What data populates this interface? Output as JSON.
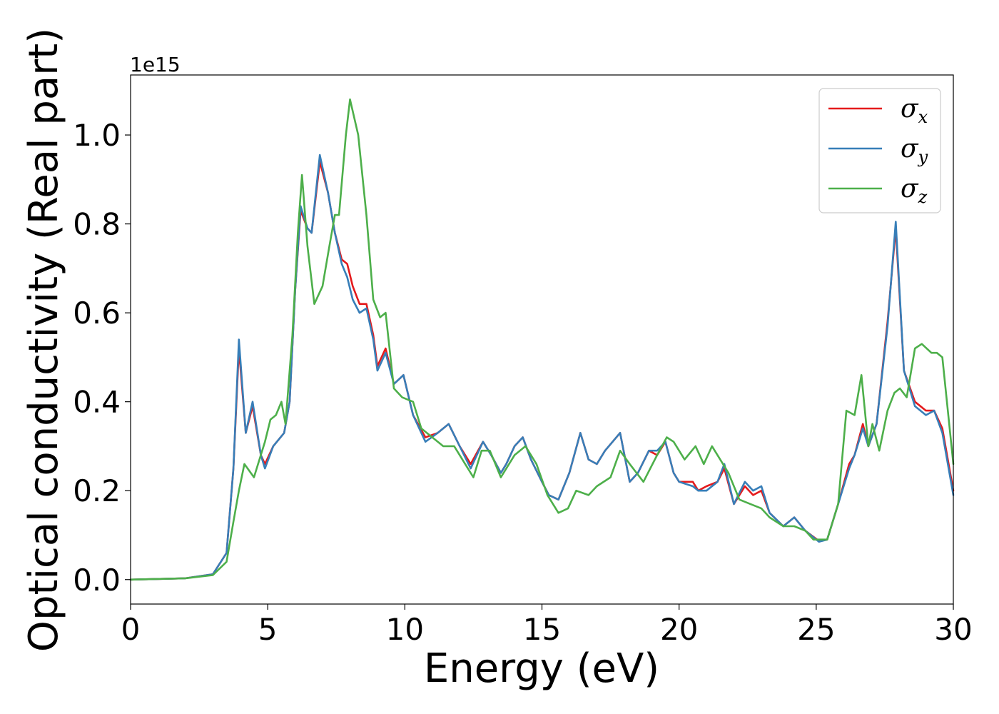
{
  "chart_data": {
    "type": "line",
    "title": "",
    "xlabel": "Energy (eV)",
    "ylabel": "Optical conductivity (Real part)",
    "y_offset_label": "1e15",
    "xlim": [
      0,
      30
    ],
    "ylim": [
      -0.055,
      1.135
    ],
    "x_ticks": [
      0,
      5,
      10,
      15,
      20,
      25,
      30
    ],
    "x_tick_labels": [
      "0",
      "5",
      "10",
      "15",
      "20",
      "25",
      "30"
    ],
    "y_ticks": [
      0.0,
      0.2,
      0.4,
      0.6,
      0.8,
      1.0
    ],
    "y_tick_labels": [
      "0.0",
      "0.2",
      "0.4",
      "0.6",
      "0.8",
      "1.0"
    ],
    "grid": false,
    "legend_position": "top-right",
    "series": [
      {
        "name": "σx",
        "symbol": "σ",
        "subscript": "x",
        "color": "#e41a1c",
        "points": [
          [
            0,
            0
          ],
          [
            2,
            0.003
          ],
          [
            3,
            0.012
          ],
          [
            3.5,
            0.06
          ],
          [
            3.75,
            0.25
          ],
          [
            3.95,
            0.52
          ],
          [
            4.2,
            0.33
          ],
          [
            4.45,
            0.39
          ],
          [
            4.75,
            0.28
          ],
          [
            4.9,
            0.26
          ],
          [
            5.2,
            0.3
          ],
          [
            5.6,
            0.33
          ],
          [
            5.8,
            0.4
          ],
          [
            6.0,
            0.65
          ],
          [
            6.2,
            0.83
          ],
          [
            6.45,
            0.79
          ],
          [
            6.6,
            0.78
          ],
          [
            6.9,
            0.94
          ],
          [
            7.2,
            0.87
          ],
          [
            7.45,
            0.78
          ],
          [
            7.7,
            0.72
          ],
          [
            7.9,
            0.71
          ],
          [
            8.1,
            0.66
          ],
          [
            8.35,
            0.62
          ],
          [
            8.6,
            0.62
          ],
          [
            8.85,
            0.55
          ],
          [
            9.0,
            0.48
          ],
          [
            9.3,
            0.52
          ],
          [
            9.6,
            0.44
          ],
          [
            9.95,
            0.46
          ],
          [
            10.3,
            0.37
          ],
          [
            10.75,
            0.32
          ],
          [
            11.2,
            0.33
          ],
          [
            11.6,
            0.35
          ],
          [
            12.0,
            0.3
          ],
          [
            12.4,
            0.26
          ],
          [
            12.85,
            0.31
          ],
          [
            13.15,
            0.28
          ],
          [
            13.5,
            0.24
          ],
          [
            13.7,
            0.26
          ],
          [
            14.0,
            0.3
          ],
          [
            14.3,
            0.32
          ],
          [
            14.6,
            0.27
          ],
          [
            15.0,
            0.22
          ],
          [
            15.25,
            0.19
          ],
          [
            15.6,
            0.18
          ],
          [
            16.0,
            0.24
          ],
          [
            16.4,
            0.33
          ],
          [
            16.7,
            0.27
          ],
          [
            17.0,
            0.26
          ],
          [
            17.3,
            0.29
          ],
          [
            17.85,
            0.33
          ],
          [
            18.2,
            0.22
          ],
          [
            18.5,
            0.24
          ],
          [
            18.9,
            0.29
          ],
          [
            19.2,
            0.28
          ],
          [
            19.5,
            0.31
          ],
          [
            19.8,
            0.24
          ],
          [
            20.0,
            0.22
          ],
          [
            20.5,
            0.22
          ],
          [
            20.7,
            0.2
          ],
          [
            21.0,
            0.21
          ],
          [
            21.4,
            0.22
          ],
          [
            21.65,
            0.25
          ],
          [
            22.0,
            0.17
          ],
          [
            22.4,
            0.21
          ],
          [
            22.7,
            0.19
          ],
          [
            23.0,
            0.2
          ],
          [
            23.3,
            0.15
          ],
          [
            23.8,
            0.12
          ],
          [
            24.2,
            0.14
          ],
          [
            24.6,
            0.11
          ],
          [
            25.1,
            0.087
          ],
          [
            25.4,
            0.09
          ],
          [
            25.8,
            0.17
          ],
          [
            26.2,
            0.26
          ],
          [
            26.4,
            0.28
          ],
          [
            26.7,
            0.35
          ],
          [
            26.9,
            0.3
          ],
          [
            27.2,
            0.35
          ],
          [
            27.6,
            0.58
          ],
          [
            27.9,
            0.79
          ],
          [
            28.2,
            0.47
          ],
          [
            28.6,
            0.4
          ],
          [
            29.0,
            0.38
          ],
          [
            29.3,
            0.38
          ],
          [
            29.6,
            0.34
          ],
          [
            30.0,
            0.2
          ]
        ]
      },
      {
        "name": "σy",
        "symbol": "σ",
        "subscript": "y",
        "color": "#377eb8",
        "points": [
          [
            0,
            0
          ],
          [
            2,
            0.003
          ],
          [
            3,
            0.012
          ],
          [
            3.5,
            0.06
          ],
          [
            3.75,
            0.25
          ],
          [
            3.95,
            0.54
          ],
          [
            4.2,
            0.33
          ],
          [
            4.45,
            0.4
          ],
          [
            4.75,
            0.28
          ],
          [
            4.9,
            0.25
          ],
          [
            5.2,
            0.3
          ],
          [
            5.6,
            0.33
          ],
          [
            5.8,
            0.4
          ],
          [
            6.0,
            0.65
          ],
          [
            6.2,
            0.84
          ],
          [
            6.45,
            0.79
          ],
          [
            6.6,
            0.78
          ],
          [
            6.9,
            0.955
          ],
          [
            7.2,
            0.87
          ],
          [
            7.45,
            0.78
          ],
          [
            7.7,
            0.71
          ],
          [
            7.9,
            0.68
          ],
          [
            8.1,
            0.63
          ],
          [
            8.35,
            0.6
          ],
          [
            8.6,
            0.61
          ],
          [
            8.85,
            0.54
          ],
          [
            9.0,
            0.47
          ],
          [
            9.3,
            0.51
          ],
          [
            9.6,
            0.44
          ],
          [
            9.95,
            0.46
          ],
          [
            10.3,
            0.37
          ],
          [
            10.75,
            0.31
          ],
          [
            11.2,
            0.33
          ],
          [
            11.6,
            0.35
          ],
          [
            12.0,
            0.3
          ],
          [
            12.4,
            0.25
          ],
          [
            12.85,
            0.31
          ],
          [
            13.15,
            0.28
          ],
          [
            13.5,
            0.24
          ],
          [
            13.7,
            0.26
          ],
          [
            14.0,
            0.3
          ],
          [
            14.3,
            0.32
          ],
          [
            14.6,
            0.27
          ],
          [
            15.0,
            0.22
          ],
          [
            15.25,
            0.19
          ],
          [
            15.6,
            0.18
          ],
          [
            16.0,
            0.24
          ],
          [
            16.4,
            0.33
          ],
          [
            16.7,
            0.27
          ],
          [
            17.0,
            0.26
          ],
          [
            17.3,
            0.29
          ],
          [
            17.85,
            0.33
          ],
          [
            18.2,
            0.22
          ],
          [
            18.5,
            0.24
          ],
          [
            18.9,
            0.29
          ],
          [
            19.2,
            0.29
          ],
          [
            19.5,
            0.31
          ],
          [
            19.8,
            0.24
          ],
          [
            20.0,
            0.22
          ],
          [
            20.5,
            0.21
          ],
          [
            20.7,
            0.2
          ],
          [
            21.0,
            0.2
          ],
          [
            21.4,
            0.22
          ],
          [
            21.65,
            0.26
          ],
          [
            22.0,
            0.17
          ],
          [
            22.4,
            0.22
          ],
          [
            22.7,
            0.2
          ],
          [
            23.0,
            0.21
          ],
          [
            23.3,
            0.15
          ],
          [
            23.8,
            0.12
          ],
          [
            24.2,
            0.14
          ],
          [
            24.6,
            0.11
          ],
          [
            25.1,
            0.085
          ],
          [
            25.4,
            0.09
          ],
          [
            25.8,
            0.17
          ],
          [
            26.2,
            0.25
          ],
          [
            26.4,
            0.28
          ],
          [
            26.7,
            0.34
          ],
          [
            26.9,
            0.3
          ],
          [
            27.2,
            0.35
          ],
          [
            27.6,
            0.57
          ],
          [
            27.9,
            0.805
          ],
          [
            28.2,
            0.47
          ],
          [
            28.6,
            0.39
          ],
          [
            29.0,
            0.37
          ],
          [
            29.3,
            0.38
          ],
          [
            29.6,
            0.33
          ],
          [
            30.0,
            0.19
          ]
        ]
      },
      {
        "name": "σz",
        "symbol": "σ",
        "subscript": "z",
        "color": "#4daf4a",
        "points": [
          [
            0,
            0
          ],
          [
            2,
            0.003
          ],
          [
            3,
            0.01
          ],
          [
            3.5,
            0.04
          ],
          [
            3.75,
            0.13
          ],
          [
            3.95,
            0.2
          ],
          [
            4.15,
            0.26
          ],
          [
            4.5,
            0.23
          ],
          [
            4.9,
            0.31
          ],
          [
            5.1,
            0.36
          ],
          [
            5.3,
            0.37
          ],
          [
            5.5,
            0.4
          ],
          [
            5.65,
            0.35
          ],
          [
            5.9,
            0.55
          ],
          [
            6.1,
            0.78
          ],
          [
            6.25,
            0.91
          ],
          [
            6.45,
            0.75
          ],
          [
            6.7,
            0.62
          ],
          [
            7.0,
            0.66
          ],
          [
            7.25,
            0.75
          ],
          [
            7.45,
            0.82
          ],
          [
            7.6,
            0.82
          ],
          [
            7.85,
            1.0
          ],
          [
            8.0,
            1.08
          ],
          [
            8.3,
            1.0
          ],
          [
            8.6,
            0.82
          ],
          [
            8.85,
            0.63
          ],
          [
            9.1,
            0.59
          ],
          [
            9.3,
            0.6
          ],
          [
            9.6,
            0.43
          ],
          [
            9.9,
            0.41
          ],
          [
            10.3,
            0.4
          ],
          [
            10.6,
            0.34
          ],
          [
            11.0,
            0.32
          ],
          [
            11.4,
            0.3
          ],
          [
            11.8,
            0.3
          ],
          [
            12.2,
            0.26
          ],
          [
            12.5,
            0.23
          ],
          [
            12.8,
            0.29
          ],
          [
            13.1,
            0.29
          ],
          [
            13.5,
            0.23
          ],
          [
            14.0,
            0.28
          ],
          [
            14.4,
            0.3
          ],
          [
            14.8,
            0.26
          ],
          [
            15.2,
            0.19
          ],
          [
            15.6,
            0.15
          ],
          [
            15.95,
            0.16
          ],
          [
            16.25,
            0.2
          ],
          [
            16.7,
            0.19
          ],
          [
            17.0,
            0.21
          ],
          [
            17.5,
            0.23
          ],
          [
            17.85,
            0.29
          ],
          [
            18.2,
            0.26
          ],
          [
            18.7,
            0.22
          ],
          [
            19.2,
            0.28
          ],
          [
            19.55,
            0.32
          ],
          [
            19.8,
            0.31
          ],
          [
            20.2,
            0.27
          ],
          [
            20.6,
            0.3
          ],
          [
            20.9,
            0.26
          ],
          [
            21.2,
            0.3
          ],
          [
            21.5,
            0.27
          ],
          [
            21.8,
            0.24
          ],
          [
            22.2,
            0.18
          ],
          [
            22.6,
            0.17
          ],
          [
            23.0,
            0.16
          ],
          [
            23.3,
            0.14
          ],
          [
            23.8,
            0.12
          ],
          [
            24.2,
            0.12
          ],
          [
            24.6,
            0.11
          ],
          [
            24.9,
            0.09
          ],
          [
            25.4,
            0.09
          ],
          [
            25.8,
            0.17
          ],
          [
            26.1,
            0.38
          ],
          [
            26.4,
            0.37
          ],
          [
            26.65,
            0.46
          ],
          [
            26.9,
            0.3
          ],
          [
            27.05,
            0.35
          ],
          [
            27.3,
            0.29
          ],
          [
            27.6,
            0.38
          ],
          [
            27.85,
            0.42
          ],
          [
            28.05,
            0.43
          ],
          [
            28.3,
            0.41
          ],
          [
            28.6,
            0.52
          ],
          [
            28.85,
            0.53
          ],
          [
            29.2,
            0.51
          ],
          [
            29.4,
            0.51
          ],
          [
            29.6,
            0.5
          ],
          [
            30.0,
            0.26
          ]
        ]
      }
    ]
  }
}
